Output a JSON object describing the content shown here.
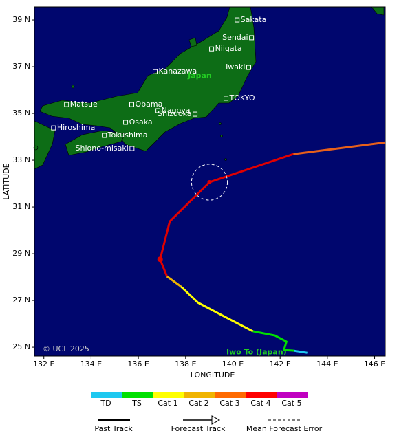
{
  "chart_data": {
    "type": "track",
    "xlabel": "LONGITUDE",
    "ylabel": "LATITUDE",
    "credit": "© UCL 2025",
    "xlim": [
      131.6,
      146.45
    ],
    "ylim": [
      24.62,
      39.56
    ],
    "xticks": [
      {
        "value": 132,
        "label": "132 E"
      },
      {
        "value": 134,
        "label": "134 E"
      },
      {
        "value": 136,
        "label": "136 E"
      },
      {
        "value": 138,
        "label": "138 E"
      },
      {
        "value": 140,
        "label": "140 E"
      },
      {
        "value": 142,
        "label": "142 E"
      },
      {
        "value": 144,
        "label": "144 E"
      },
      {
        "value": 146,
        "label": "146 E"
      }
    ],
    "yticks": [
      {
        "value": 25,
        "label": "25 N"
      },
      {
        "value": 27,
        "label": "27 N"
      },
      {
        "value": 29,
        "label": "29 N"
      },
      {
        "value": 31,
        "label": "31 N"
      },
      {
        "value": 33,
        "label": "33 N"
      },
      {
        "value": 35,
        "label": "35 N"
      },
      {
        "value": 37,
        "label": "37 N"
      },
      {
        "value": 39,
        "label": "39 N"
      }
    ],
    "segments": [
      {
        "color": "#1ec8f0",
        "lon": [
          143.15,
          142.59
        ],
        "lat": [
          24.76,
          24.85
        ]
      },
      {
        "color": "#00e000",
        "lon": [
          142.59,
          142.16,
          142.27,
          141.78,
          140.85
        ],
        "lat": [
          24.85,
          24.88,
          25.24,
          25.5,
          25.68
        ]
      },
      {
        "color": "#ffff00",
        "lon": [
          140.85,
          139.74,
          138.52,
          137.8
        ],
        "lat": [
          25.68,
          26.26,
          26.91,
          27.6
        ]
      },
      {
        "color": "#f0b400",
        "lon": [
          137.8,
          137.21
        ],
        "lat": [
          27.6,
          28.03
        ]
      },
      {
        "color": "#e00000",
        "lon": [
          137.21,
          136.92,
          137.33,
          139.01,
          142.56
        ],
        "lat": [
          28.03,
          28.76,
          30.38,
          32.06,
          33.26
        ]
      },
      {
        "color": "#e8601a",
        "lon": [
          142.56,
          146.45
        ],
        "lat": [
          33.26,
          33.76
        ]
      }
    ],
    "positions": {
      "lon": [
        136.92,
        139.01
      ],
      "lat": [
        28.76,
        32.06
      ],
      "color": "#e00000"
    },
    "forecast_error": {
      "lon": 139.01,
      "lat": 32.06,
      "radius": 0.76
    },
    "cities": [
      {
        "name": "Sakata",
        "lon": 140.18,
        "lat": 39.0
      },
      {
        "name": "Sendai",
        "lon": 140.79,
        "lat": 38.24
      },
      {
        "name": "Niigata",
        "lon": 139.1,
        "lat": 37.76
      },
      {
        "name": "Iwaki",
        "lon": 140.67,
        "lat": 36.97
      },
      {
        "name": "Kanazawa",
        "lon": 136.71,
        "lat": 36.79
      },
      {
        "name": "TOKYO",
        "lon": 139.71,
        "lat": 35.65
      },
      {
        "name": "Matsue",
        "lon": 132.96,
        "lat": 35.38
      },
      {
        "name": "Obama",
        "lon": 135.72,
        "lat": 35.38
      },
      {
        "name": "Nagoya",
        "lon": 136.83,
        "lat": 35.12
      },
      {
        "name": "Shizuoka",
        "lon": 138.4,
        "lat": 34.97
      },
      {
        "name": "Osaka",
        "lon": 135.46,
        "lat": 34.62
      },
      {
        "name": "Hiroshima",
        "lon": 132.41,
        "lat": 34.38
      },
      {
        "name": "Tokushima",
        "lon": 134.56,
        "lat": 34.06
      },
      {
        "name": "Shiono-misaki",
        "lon": 135.73,
        "lat": 33.5
      }
    ],
    "regions": [
      {
        "name": "Japan",
        "lon": 138.6,
        "lat": 36.6
      },
      {
        "name": "Iwo To (Japan)",
        "lon": 141.0,
        "lat": 24.78
      }
    ],
    "legend_categories": [
      {
        "name": "TD",
        "color": "#1ec8f0"
      },
      {
        "name": "TS",
        "color": "#00e000"
      },
      {
        "name": "Cat 1",
        "color": "#ffff00"
      },
      {
        "name": "Cat 2",
        "color": "#f0b400"
      },
      {
        "name": "Cat 3",
        "color": "#ff6a00"
      },
      {
        "name": "Cat 4",
        "color": "#ff0000"
      },
      {
        "name": "Cat 5",
        "color": "#c000c0"
      }
    ],
    "track_legend": [
      "Past Track",
      "Forecast Track",
      "Mean Forecast Error"
    ]
  }
}
